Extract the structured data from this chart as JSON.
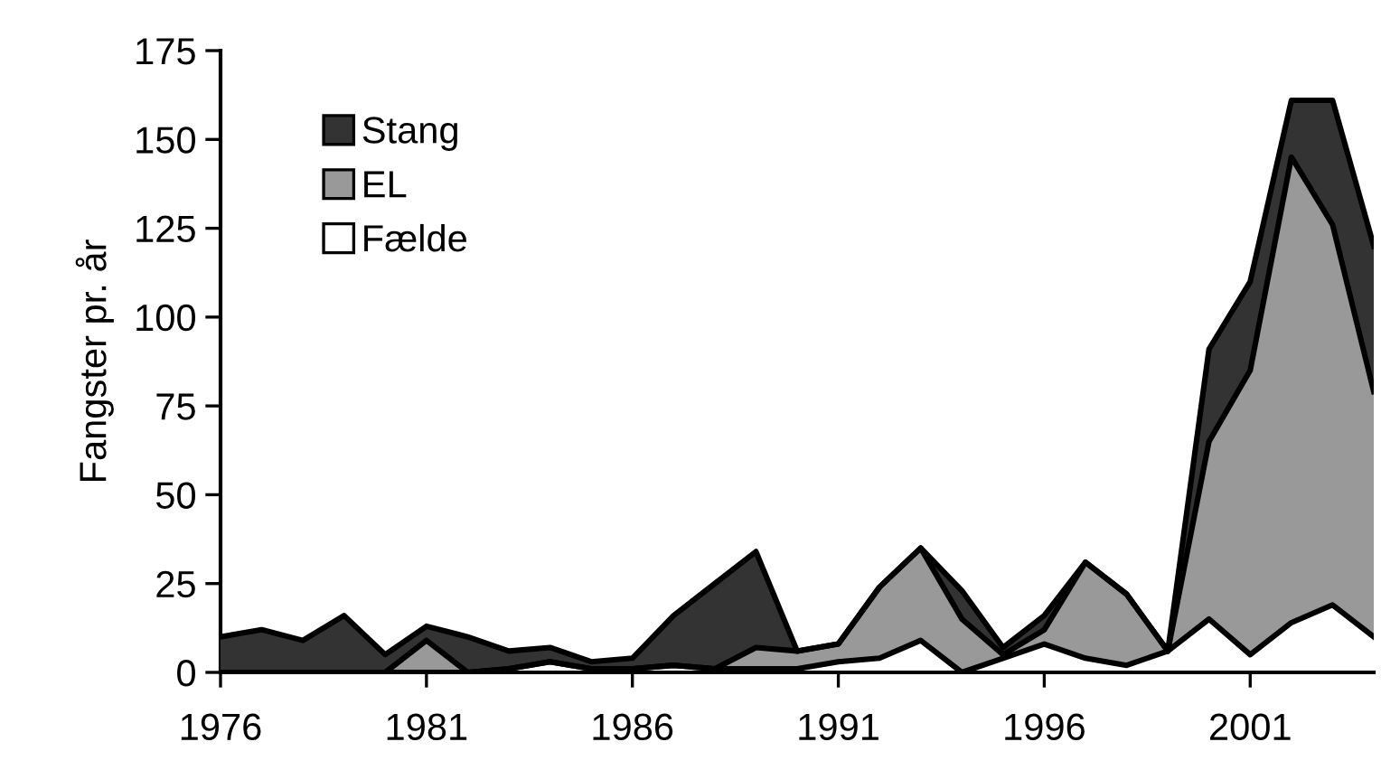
{
  "chart_data": {
    "type": "area",
    "stacked": true,
    "ylabel": "Fangster pr. år",
    "x": [
      1976,
      1977,
      1978,
      1979,
      1980,
      1981,
      1982,
      1983,
      1984,
      1985,
      1986,
      1987,
      1988,
      1989,
      1990,
      1991,
      1992,
      1993,
      1994,
      1995,
      1996,
      1997,
      1998,
      1999,
      2000,
      2001,
      2002,
      2003,
      2004
    ],
    "series": [
      {
        "name": "Fælde",
        "color": "#ffffff",
        "values": [
          0,
          0,
          0,
          0,
          0,
          0,
          0,
          1,
          3,
          1,
          1,
          2,
          1,
          1,
          1,
          3,
          4,
          9,
          0,
          4,
          8,
          4,
          2,
          6,
          15,
          5,
          14,
          19,
          10
        ]
      },
      {
        "name": "EL",
        "color": "#999999",
        "values": [
          0,
          0,
          0,
          0,
          0,
          9,
          0,
          0,
          0,
          0,
          0,
          0,
          0,
          6,
          5,
          5,
          20,
          26,
          15,
          1,
          4,
          27,
          20,
          0,
          50,
          80,
          131,
          107,
          69
        ]
      },
      {
        "name": "Stang",
        "color": "#333333",
        "values": [
          10,
          12,
          9,
          16,
          5,
          4,
          10,
          5,
          4,
          2,
          3,
          14,
          24,
          27,
          0,
          0,
          0,
          0,
          8,
          2,
          4,
          0,
          0,
          0,
          26,
          25,
          16,
          35,
          41
        ]
      }
    ],
    "xlim": [
      1976,
      2004
    ],
    "xticks": [
      1976,
      1981,
      1986,
      1991,
      1996,
      2001
    ],
    "ylim": [
      0,
      175
    ],
    "yticks": [
      0,
      25,
      50,
      75,
      100,
      125,
      150,
      175
    ],
    "legend": "top left",
    "grid": false
  }
}
